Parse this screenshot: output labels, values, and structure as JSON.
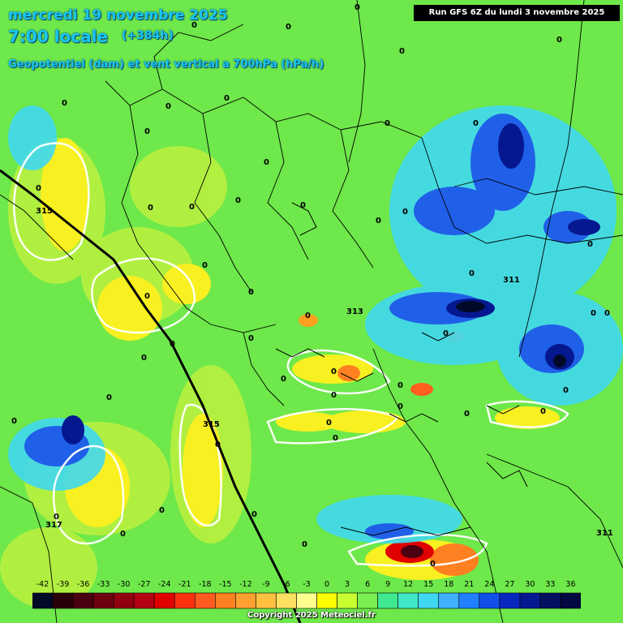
{
  "header": {
    "date_line": "mercredi 19 novembre 2025",
    "time_line": "7:00 locale",
    "lead": "(+384h)",
    "field_line": "Geopotentiel (dam) et vent vertical a 700hPa (hPa/h)"
  },
  "run_info": "Run GFS 6Z du lundi 3 novembre 2025",
  "legend": {
    "values": [
      "-42",
      "-39",
      "-36",
      "-33",
      "-30",
      "-27",
      "-24",
      "-21",
      "-18",
      "-15",
      "-12",
      "-9",
      "-6",
      "-3",
      "0",
      "3",
      "6",
      "9",
      "12",
      "15",
      "18",
      "21",
      "24",
      "27",
      "30",
      "33",
      "36"
    ],
    "colors": [
      "#000a28",
      "#2a0008",
      "#4a0010",
      "#6e0010",
      "#900010",
      "#b40010",
      "#e00000",
      "#ff3010",
      "#ff5a20",
      "#ff8020",
      "#ffa030",
      "#ffc040",
      "#ffe060",
      "#ffff90",
      "#ffff00",
      "#c8ff30",
      "#7af050",
      "#40e890",
      "#40e8c8",
      "#40d8f0",
      "#40b0ff",
      "#2080ff",
      "#1050e8",
      "#0828c0",
      "#061890",
      "#041060",
      "#020840"
    ]
  },
  "map_labels": {
    "geopotential": [
      "315",
      "313",
      "311",
      "311",
      "315",
      "317"
    ],
    "zero": "0"
  },
  "copyright": "Copyright 2025 Meteociel.fr"
}
